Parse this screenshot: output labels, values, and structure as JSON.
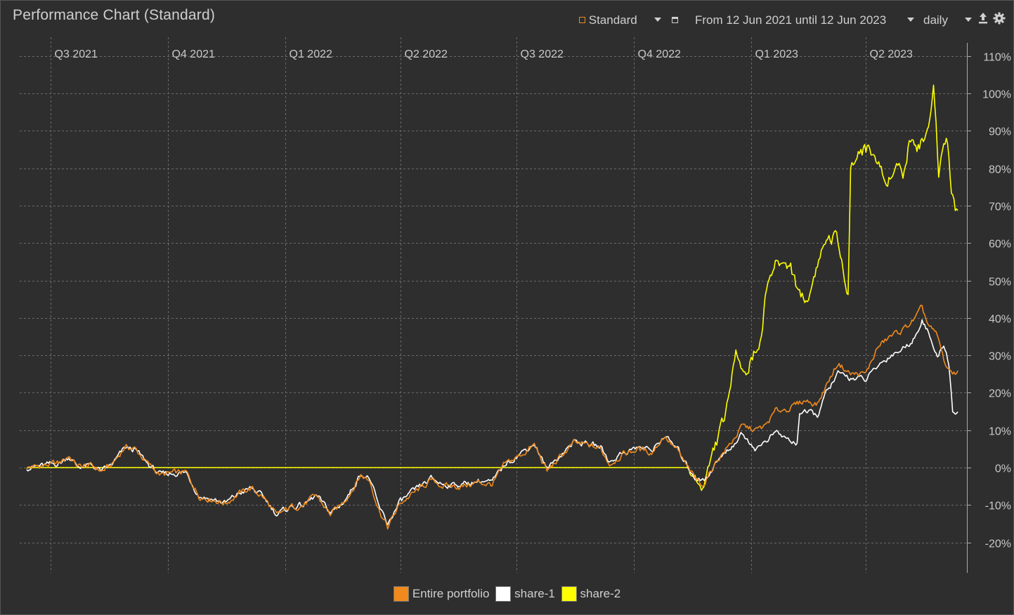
{
  "title": "Performance Chart (Standard)",
  "toolbar": {
    "view_label": "Standard",
    "range_label": "From 12 Jun 2021 until 12 Jun 2023",
    "interval_label": "daily",
    "export_icon": "upload-icon",
    "settings_icon": "gear-icon"
  },
  "colors": {
    "background": "#2e2e2e",
    "grid": "#6a6a6a",
    "axis_text": "#c8c8c8",
    "portfolio": "#f08a1c",
    "share1": "#ffffff",
    "share2": "#ffff00"
  },
  "chart_data": {
    "type": "line",
    "x_ticks": [
      "Q3 2021",
      "Q4 2021",
      "Q1 2022",
      "Q2 2022",
      "Q3 2022",
      "Q4 2022",
      "Q1 2023",
      "Q2 2023"
    ],
    "y_ticks": [
      "110%",
      "100%",
      "90%",
      "80%",
      "70%",
      "60%",
      "50%",
      "40%",
      "30%",
      "20%",
      "10%",
      "0%",
      "-10%",
      "-20%"
    ],
    "ylim": [
      -25,
      112
    ],
    "xlim": [
      "2021-06-12",
      "2023-06-12"
    ],
    "grid": true,
    "legend_position": "bottom",
    "series": [
      {
        "name": "Entire portfolio",
        "color": "#f08a1c",
        "points": [
          [
            "2021-06-12",
            0
          ],
          [
            "2021-06-25",
            0.5
          ],
          [
            "2021-07-08",
            1.2
          ],
          [
            "2021-07-15",
            3.2
          ],
          [
            "2021-07-22",
            0.3
          ],
          [
            "2021-08-02",
            0.5
          ],
          [
            "2021-08-10",
            -1.0
          ],
          [
            "2021-08-18",
            0.8
          ],
          [
            "2021-08-28",
            5.5
          ],
          [
            "2021-09-05",
            5.0
          ],
          [
            "2021-09-15",
            1.0
          ],
          [
            "2021-09-25",
            -2.0
          ],
          [
            "2021-10-05",
            -1.5
          ],
          [
            "2021-10-15",
            -1.3
          ],
          [
            "2021-10-25",
            -7.5
          ],
          [
            "2021-11-05",
            -8.5
          ],
          [
            "2021-11-15",
            -9.5
          ],
          [
            "2021-11-25",
            -7.0
          ],
          [
            "2021-12-05",
            -5.5
          ],
          [
            "2021-12-15",
            -8.0
          ],
          [
            "2021-12-25",
            -13.0
          ],
          [
            "2022-01-05",
            -10.5
          ],
          [
            "2022-01-15",
            -10.0
          ],
          [
            "2022-01-25",
            -7.5
          ],
          [
            "2022-02-05",
            -12.5
          ],
          [
            "2022-02-12",
            -10.5
          ],
          [
            "2022-02-20",
            -7.0
          ],
          [
            "2022-03-01",
            -2.0
          ],
          [
            "2022-03-08",
            -3.5
          ],
          [
            "2022-03-15",
            -11.0
          ],
          [
            "2022-03-22",
            -16.0
          ],
          [
            "2022-04-01",
            -9.5
          ],
          [
            "2022-04-15",
            -6.0
          ],
          [
            "2022-04-25",
            -3.5
          ],
          [
            "2022-05-05",
            -5.0
          ],
          [
            "2022-05-20",
            -5.0
          ],
          [
            "2022-06-01",
            -4.0
          ],
          [
            "2022-06-12",
            -4.5
          ],
          [
            "2022-06-22",
            0.8
          ],
          [
            "2022-07-05",
            3.5
          ],
          [
            "2022-07-15",
            6.0
          ],
          [
            "2022-07-25",
            -1.0
          ],
          [
            "2022-08-05",
            3.0
          ],
          [
            "2022-08-15",
            6.5
          ],
          [
            "2022-08-25",
            6.0
          ],
          [
            "2022-09-05",
            5.0
          ],
          [
            "2022-09-12",
            1.0
          ],
          [
            "2022-09-22",
            3.5
          ],
          [
            "2022-10-05",
            5.0
          ],
          [
            "2022-10-15",
            4.0
          ],
          [
            "2022-10-25",
            8.5
          ],
          [
            "2022-11-05",
            4.0
          ],
          [
            "2022-11-12",
            0.0
          ],
          [
            "2022-11-18",
            -3.0
          ],
          [
            "2022-11-25",
            -4.5
          ],
          [
            "2022-12-05",
            2.0
          ],
          [
            "2022-12-15",
            6.0
          ],
          [
            "2022-12-25",
            11.0
          ],
          [
            "2023-01-05",
            10.0
          ],
          [
            "2023-01-12",
            11.0
          ],
          [
            "2023-01-20",
            15.0
          ],
          [
            "2023-02-01",
            16.0
          ],
          [
            "2023-02-12",
            18.0
          ],
          [
            "2023-02-22",
            17.0
          ],
          [
            "2023-03-01",
            22.0
          ],
          [
            "2023-03-10",
            28.0
          ],
          [
            "2023-03-20",
            25.0
          ],
          [
            "2023-04-01",
            25.0
          ],
          [
            "2023-04-10",
            32.0
          ],
          [
            "2023-04-20",
            35.0
          ],
          [
            "2023-05-01",
            37.0
          ],
          [
            "2023-05-10",
            40.0
          ],
          [
            "2023-05-15",
            42.5
          ],
          [
            "2023-05-20",
            38.0
          ],
          [
            "2023-05-27",
            35.0
          ],
          [
            "2023-06-01",
            29.0
          ],
          [
            "2023-06-05",
            25.5
          ],
          [
            "2023-06-12",
            25.5
          ]
        ]
      },
      {
        "name": "share-1",
        "color": "#ffffff",
        "points": [
          [
            "2021-06-12",
            0
          ],
          [
            "2021-06-25",
            0.5
          ],
          [
            "2021-07-08",
            1.2
          ],
          [
            "2021-07-15",
            3.0
          ],
          [
            "2021-07-22",
            0.3
          ],
          [
            "2021-08-02",
            0.5
          ],
          [
            "2021-08-10",
            -1.0
          ],
          [
            "2021-08-18",
            0.8
          ],
          [
            "2021-08-28",
            5.2
          ],
          [
            "2021-09-05",
            4.8
          ],
          [
            "2021-09-15",
            1.0
          ],
          [
            "2021-09-25",
            -2.0
          ],
          [
            "2021-10-05",
            -1.5
          ],
          [
            "2021-10-15",
            -1.3
          ],
          [
            "2021-10-25",
            -7.5
          ],
          [
            "2021-11-05",
            -8.5
          ],
          [
            "2021-11-15",
            -9.5
          ],
          [
            "2021-11-25",
            -7.0
          ],
          [
            "2021-12-05",
            -5.5
          ],
          [
            "2021-12-15",
            -8.0
          ],
          [
            "2021-12-25",
            -12.5
          ],
          [
            "2022-01-05",
            -10.5
          ],
          [
            "2022-01-15",
            -10.0
          ],
          [
            "2022-01-25",
            -7.5
          ],
          [
            "2022-02-05",
            -12.0
          ],
          [
            "2022-02-12",
            -10.5
          ],
          [
            "2022-02-20",
            -7.0
          ],
          [
            "2022-03-01",
            -1.5
          ],
          [
            "2022-03-08",
            -3.0
          ],
          [
            "2022-03-15",
            -10.5
          ],
          [
            "2022-03-22",
            -15.0
          ],
          [
            "2022-04-01",
            -9.0
          ],
          [
            "2022-04-15",
            -5.5
          ],
          [
            "2022-04-25",
            -3.0
          ],
          [
            "2022-05-05",
            -4.5
          ],
          [
            "2022-05-20",
            -4.5
          ],
          [
            "2022-06-01",
            -3.5
          ],
          [
            "2022-06-12",
            -4.0
          ],
          [
            "2022-06-22",
            1.0
          ],
          [
            "2022-07-05",
            4.0
          ],
          [
            "2022-07-15",
            6.5
          ],
          [
            "2022-07-25",
            -0.5
          ],
          [
            "2022-08-05",
            3.5
          ],
          [
            "2022-08-15",
            7.0
          ],
          [
            "2022-08-25",
            6.5
          ],
          [
            "2022-09-05",
            5.5
          ],
          [
            "2022-09-12",
            1.5
          ],
          [
            "2022-09-22",
            4.0
          ],
          [
            "2022-10-05",
            5.5
          ],
          [
            "2022-10-15",
            4.5
          ],
          [
            "2022-10-25",
            8.5
          ],
          [
            "2022-11-05",
            4.5
          ],
          [
            "2022-11-12",
            0.5
          ],
          [
            "2022-11-18",
            -2.5
          ],
          [
            "2022-11-25",
            -3.5
          ],
          [
            "2022-12-05",
            1.5
          ],
          [
            "2022-12-15",
            5.0
          ],
          [
            "2022-12-25",
            9.0
          ],
          [
            "2023-01-05",
            5.0
          ],
          [
            "2023-01-12",
            7.0
          ],
          [
            "2023-01-20",
            9.5
          ],
          [
            "2023-02-01",
            7.0
          ],
          [
            "2023-02-06",
            6.5
          ],
          [
            "2023-02-08",
            15.0
          ],
          [
            "2023-02-22",
            14.0
          ],
          [
            "2023-03-01",
            20.0
          ],
          [
            "2023-03-10",
            25.0
          ],
          [
            "2023-03-20",
            24.0
          ],
          [
            "2023-04-01",
            23.5
          ],
          [
            "2023-04-10",
            27.0
          ],
          [
            "2023-04-20",
            30.0
          ],
          [
            "2023-05-01",
            32.0
          ],
          [
            "2023-05-10",
            35.0
          ],
          [
            "2023-05-15",
            40.0
          ],
          [
            "2023-05-20",
            36.0
          ],
          [
            "2023-05-27",
            29.0
          ],
          [
            "2023-06-01",
            33.0
          ],
          [
            "2023-06-05",
            28.0
          ],
          [
            "2023-06-08",
            15.0
          ],
          [
            "2023-06-12",
            14.8
          ]
        ]
      },
      {
        "name": "share-2",
        "color": "#ffff00",
        "points": [
          [
            "2021-06-12",
            0
          ],
          [
            "2022-11-12",
            0
          ],
          [
            "2022-11-18",
            -3.0
          ],
          [
            "2022-11-25",
            -5.0
          ],
          [
            "2022-12-01",
            3.0
          ],
          [
            "2022-12-08",
            10.0
          ],
          [
            "2022-12-15",
            18.0
          ],
          [
            "2022-12-20",
            33.0
          ],
          [
            "2022-12-27",
            25.0
          ],
          [
            "2023-01-03",
            30.0
          ],
          [
            "2023-01-08",
            34.0
          ],
          [
            "2023-01-14",
            50.0
          ],
          [
            "2023-01-22",
            55.0
          ],
          [
            "2023-02-01",
            54.0
          ],
          [
            "2023-02-08",
            46.0
          ],
          [
            "2023-02-15",
            45.0
          ],
          [
            "2023-02-22",
            55.0
          ],
          [
            "2023-03-01",
            61.0
          ],
          [
            "2023-03-08",
            62.0
          ],
          [
            "2023-03-13",
            55.0
          ],
          [
            "2023-03-18",
            48.0
          ],
          [
            "2023-03-20",
            80.0
          ],
          [
            "2023-03-28",
            85.0
          ],
          [
            "2023-04-05",
            85.0
          ],
          [
            "2023-04-12",
            80.0
          ],
          [
            "2023-04-18",
            75.0
          ],
          [
            "2023-04-24",
            83.0
          ],
          [
            "2023-04-30",
            78.0
          ],
          [
            "2023-05-05",
            88.0
          ],
          [
            "2023-05-12",
            86.0
          ],
          [
            "2023-05-18",
            88.0
          ],
          [
            "2023-05-24",
            102.0
          ],
          [
            "2023-05-28",
            79.0
          ],
          [
            "2023-06-01",
            89.0
          ],
          [
            "2023-06-04",
            88.0
          ],
          [
            "2023-06-07",
            75.0
          ],
          [
            "2023-06-10",
            68.0
          ],
          [
            "2023-06-12",
            68.5
          ]
        ]
      }
    ]
  }
}
